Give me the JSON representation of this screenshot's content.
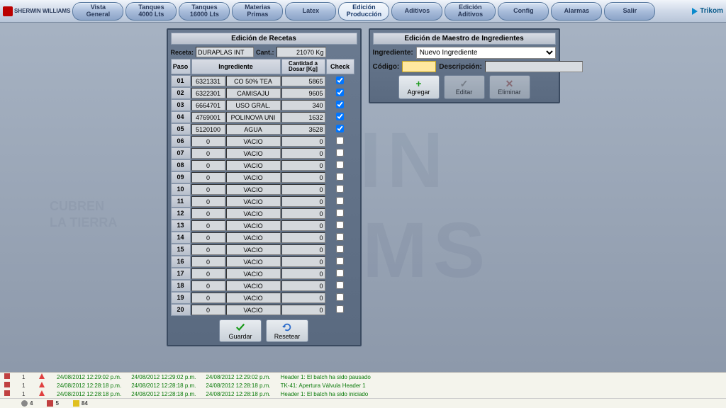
{
  "logos": {
    "left": "SHERWIN WILLIAMS",
    "right": "Trikom"
  },
  "nav": [
    {
      "l1": "Vista",
      "l2": "General"
    },
    {
      "l1": "Tanques",
      "l2": "4000 Lts"
    },
    {
      "l1": "Tanques",
      "l2": "16000 Lts"
    },
    {
      "l1": "Materias",
      "l2": "Primas"
    },
    {
      "l1": "Latex",
      "l2": ""
    },
    {
      "l1": "Edición",
      "l2": "Producción",
      "active": true
    },
    {
      "l1": "Aditivos",
      "l2": ""
    },
    {
      "l1": "Edición",
      "l2": "Aditivos"
    },
    {
      "l1": "Config",
      "l2": ""
    },
    {
      "l1": "Alarmas",
      "l2": ""
    },
    {
      "l1": "Salir",
      "l2": ""
    }
  ],
  "recipe": {
    "title": "Edición de Recetas",
    "recipe_label": "Receta:",
    "recipe_value": "DURAPLAS INT",
    "qty_label": "Cant.:",
    "qty_value": "21070 Kg",
    "cols": {
      "paso": "Paso",
      "ing": "Ingrediente",
      "qty": "Cantidad a Dosar [Kg]",
      "chk": "Check"
    },
    "rows": [
      {
        "p": "01",
        "c": "6321331",
        "n": "CO 50% TEA",
        "q": "5865",
        "ck": true
      },
      {
        "p": "02",
        "c": "6322301",
        "n": "CAMISAJU",
        "q": "9605",
        "ck": true
      },
      {
        "p": "03",
        "c": "6664701",
        "n": "USO GRAL.",
        "q": "340",
        "ck": true
      },
      {
        "p": "04",
        "c": "4769001",
        "n": "POLINOVA UNI",
        "q": "1632",
        "ck": true
      },
      {
        "p": "05",
        "c": "5120100",
        "n": "AGUA",
        "q": "3628",
        "ck": true
      },
      {
        "p": "06",
        "c": "0",
        "n": "VACIO",
        "q": "0",
        "ck": false
      },
      {
        "p": "07",
        "c": "0",
        "n": "VACIO",
        "q": "0",
        "ck": false
      },
      {
        "p": "08",
        "c": "0",
        "n": "VACIO",
        "q": "0",
        "ck": false
      },
      {
        "p": "09",
        "c": "0",
        "n": "VACIO",
        "q": "0",
        "ck": false
      },
      {
        "p": "10",
        "c": "0",
        "n": "VACIO",
        "q": "0",
        "ck": false
      },
      {
        "p": "11",
        "c": "0",
        "n": "VACIO",
        "q": "0",
        "ck": false
      },
      {
        "p": "12",
        "c": "0",
        "n": "VACIO",
        "q": "0",
        "ck": false
      },
      {
        "p": "13",
        "c": "0",
        "n": "VACIO",
        "q": "0",
        "ck": false
      },
      {
        "p": "14",
        "c": "0",
        "n": "VACIO",
        "q": "0",
        "ck": false
      },
      {
        "p": "15",
        "c": "0",
        "n": "VACIO",
        "q": "0",
        "ck": false
      },
      {
        "p": "16",
        "c": "0",
        "n": "VACIO",
        "q": "0",
        "ck": false
      },
      {
        "p": "17",
        "c": "0",
        "n": "VACIO",
        "q": "0",
        "ck": false
      },
      {
        "p": "18",
        "c": "0",
        "n": "VACIO",
        "q": "0",
        "ck": false
      },
      {
        "p": "19",
        "c": "0",
        "n": "VACIO",
        "q": "0",
        "ck": false
      },
      {
        "p": "20",
        "c": "0",
        "n": "VACIO",
        "q": "0",
        "ck": false
      }
    ],
    "btn_save": "Guardar",
    "btn_reset": "Resetear"
  },
  "ingredients": {
    "title": "Edición de Maestro de Ingredientes",
    "ing_label": "Ingrediente:",
    "ing_value": "Nuevo Ingrediente",
    "code_label": "Código:",
    "desc_label": "Descripción:",
    "btn_add": "Agregar",
    "btn_edit": "Editar",
    "btn_del": "Eliminar"
  },
  "alarms": [
    {
      "n": "1",
      "d1": "24/08/2012 12:29:02 p.m.",
      "d2": "24/08/2012 12:29:02 p.m.",
      "d3": "24/08/2012 12:29:02 p.m.",
      "msg": "Header 1: El batch ha sido pausado"
    },
    {
      "n": "1",
      "d1": "24/08/2012 12:28:18 p.m.",
      "d2": "24/08/2012 12:28:18 p.m.",
      "d3": "24/08/2012 12:28:18 p.m.",
      "msg": "TK-41: Apertura Válvula Header 1"
    },
    {
      "n": "1",
      "d1": "24/08/2012 12:28:18 p.m.",
      "d2": "24/08/2012 12:28:18 p.m.",
      "d3": "24/08/2012 12:28:18 p.m.",
      "msg": "Header 1: El batch ha sido iniciado"
    }
  ],
  "status": {
    "a": "4",
    "b": "5",
    "c": "84"
  },
  "colors": {
    "accent": "#1a8a1a",
    "add": "#1a9a1a",
    "del": "#c03030"
  }
}
